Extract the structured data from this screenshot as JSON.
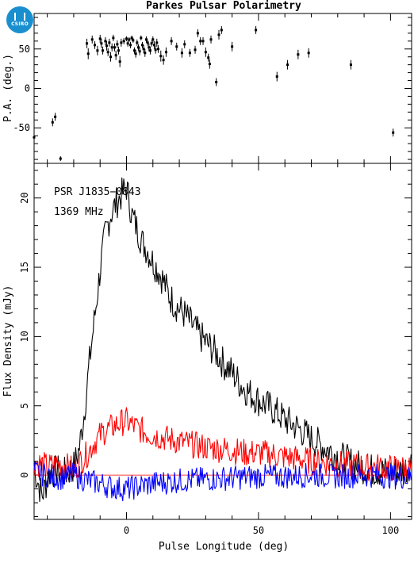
{
  "logo": {
    "text": "CSIRO"
  },
  "chart_data": [
    {
      "type": "scatter",
      "panel": "top",
      "title": "Parkes Pulsar Polarimetry",
      "ylabel": "P.A. (deg.)",
      "xlim": [
        -35,
        108
      ],
      "ylim": [
        -95,
        95
      ],
      "yticks": [
        -50,
        0,
        50
      ],
      "error_bars": true,
      "points": [
        [
          -35,
          -62,
          6
        ],
        [
          -28,
          -43,
          5
        ],
        [
          -27,
          -36,
          5
        ],
        [
          -25,
          -89,
          3
        ],
        [
          -15,
          57,
          6
        ],
        [
          -14.5,
          44,
          7
        ],
        [
          -13,
          62,
          5
        ],
        [
          -12,
          55,
          5
        ],
        [
          -11,
          48,
          6
        ],
        [
          -10,
          63,
          5
        ],
        [
          -9.5,
          57,
          6
        ],
        [
          -9,
          48,
          5
        ],
        [
          -8,
          60,
          5
        ],
        [
          -7.5,
          54,
          6
        ],
        [
          -7,
          46,
          5
        ],
        [
          -6.5,
          58,
          5
        ],
        [
          -6,
          40,
          6
        ],
        [
          -5.5,
          52,
          5
        ],
        [
          -5,
          64,
          4
        ],
        [
          -4.5,
          52,
          5
        ],
        [
          -4,
          42,
          6
        ],
        [
          -3.5,
          56,
          5
        ],
        [
          -3,
          48,
          5
        ],
        [
          -2.5,
          34,
          7
        ],
        [
          -2,
          58,
          5
        ],
        [
          -1,
          60,
          4
        ],
        [
          0,
          63,
          3
        ],
        [
          0.5,
          57,
          4
        ],
        [
          1,
          62,
          3
        ],
        [
          1.5,
          55,
          4
        ],
        [
          2,
          64,
          3
        ],
        [
          2.5,
          61,
          3
        ],
        [
          3,
          48,
          4
        ],
        [
          3.5,
          44,
          5
        ],
        [
          4,
          58,
          4
        ],
        [
          4.5,
          52,
          4
        ],
        [
          5,
          47,
          5
        ],
        [
          5.5,
          64,
          3
        ],
        [
          6,
          55,
          4
        ],
        [
          6.5,
          50,
          5
        ],
        [
          7,
          45,
          5
        ],
        [
          7.5,
          62,
          4
        ],
        [
          8,
          58,
          4
        ],
        [
          8.5,
          52,
          5
        ],
        [
          9,
          48,
          5
        ],
        [
          9.5,
          57,
          4
        ],
        [
          10,
          62,
          4
        ],
        [
          10.5,
          55,
          5
        ],
        [
          11,
          49,
          5
        ],
        [
          11.5,
          58,
          5
        ],
        [
          12,
          50,
          5
        ],
        [
          13,
          41,
          7
        ],
        [
          14,
          36,
          6
        ],
        [
          15,
          46,
          6
        ],
        [
          17,
          60,
          5
        ],
        [
          19,
          53,
          5
        ],
        [
          21,
          45,
          6
        ],
        [
          22,
          56,
          5
        ],
        [
          24,
          45,
          5
        ],
        [
          26,
          49,
          5
        ],
        [
          27,
          70,
          5
        ],
        [
          28,
          60,
          5
        ],
        [
          29,
          60,
          5
        ],
        [
          30,
          46,
          6
        ],
        [
          31,
          39,
          5
        ],
        [
          31.5,
          31,
          6
        ],
        [
          32,
          62,
          5
        ],
        [
          34,
          8,
          5
        ],
        [
          35,
          68,
          6
        ],
        [
          36,
          74,
          5
        ],
        [
          40,
          53,
          6
        ],
        [
          49,
          74,
          5
        ],
        [
          57,
          15,
          6
        ],
        [
          61,
          30,
          6
        ],
        [
          65,
          43,
          6
        ],
        [
          69,
          45,
          6
        ],
        [
          85,
          30,
          6
        ],
        [
          101,
          -56,
          5
        ]
      ]
    },
    {
      "type": "line",
      "panel": "bottom",
      "xlabel": "Pulse Longitude (deg)",
      "ylabel": "Flux Density (mJy)",
      "xlim": [
        -35,
        108
      ],
      "ylim": [
        -3.2,
        22.5
      ],
      "xticks": [
        0,
        50,
        100
      ],
      "yticks": [
        0,
        5,
        10,
        15,
        20
      ],
      "annotations": [
        "PSR J1835−0843",
        "1369 MHz"
      ],
      "series": [
        {
          "color": "#000000",
          "x": [
            -35,
            -32,
            -29,
            -26,
            -23,
            -20,
            -18,
            -16,
            -14,
            -12,
            -10,
            -8,
            -6,
            -4,
            -2,
            0,
            2,
            4,
            6,
            8,
            10,
            12,
            14,
            16,
            18,
            20,
            22,
            25,
            28,
            31,
            34,
            37,
            40,
            43,
            46,
            50,
            55,
            60,
            65,
            70,
            75,
            80,
            85,
            90,
            95,
            100,
            105,
            108
          ],
          "y": [
            0.5,
            -1.5,
            0.2,
            0.3,
            0.1,
            0.6,
            1.8,
            4.5,
            8.2,
            11.5,
            14.8,
            17.5,
            18.8,
            19.6,
            20.2,
            20.8,
            18.8,
            17.8,
            16.8,
            16.2,
            15.4,
            14.8,
            14.0,
            13.0,
            12.4,
            12.0,
            11.6,
            10.8,
            10.0,
            9.4,
            8.8,
            8.0,
            7.4,
            6.6,
            6.0,
            5.4,
            4.8,
            4.0,
            3.4,
            2.6,
            2.0,
            1.4,
            0.9,
            0.5,
            0.3,
            0.2,
            0.3,
            1.0
          ]
        },
        {
          "color": "#ff0000",
          "x": [
            -35,
            -30,
            -25,
            -20,
            -15,
            -12,
            -9,
            -6,
            -4,
            -2,
            0,
            2,
            5,
            8,
            12,
            16,
            20,
            25,
            30,
            35,
            40,
            45,
            50,
            55,
            60,
            65,
            70,
            75,
            80,
            85,
            90,
            95,
            100,
            105,
            108
          ],
          "y": [
            1.0,
            0.6,
            0.8,
            0.4,
            1.5,
            2.4,
            3.1,
            3.4,
            3.6,
            3.8,
            3.9,
            3.6,
            3.3,
            3.0,
            2.8,
            2.6,
            2.4,
            2.2,
            2.0,
            1.9,
            1.8,
            1.6,
            1.6,
            1.5,
            1.3,
            1.2,
            1.0,
            0.9,
            0.8,
            0.7,
            0.6,
            0.6,
            0.5,
            0.5,
            0.5
          ]
        },
        {
          "color": "#0000ff",
          "x": [
            -35,
            -30,
            -25,
            -20,
            -15,
            -10,
            -5,
            0,
            5,
            10,
            20,
            30,
            40,
            50,
            60,
            70,
            80,
            90,
            100,
            108
          ],
          "y": [
            0.2,
            0.0,
            -0.2,
            0.0,
            -0.4,
            -0.6,
            -0.9,
            -1.0,
            -0.8,
            -0.6,
            -0.4,
            -0.3,
            -0.2,
            -0.1,
            -0.1,
            0.0,
            -0.1,
            0.0,
            -0.1,
            -0.2
          ]
        }
      ]
    }
  ]
}
